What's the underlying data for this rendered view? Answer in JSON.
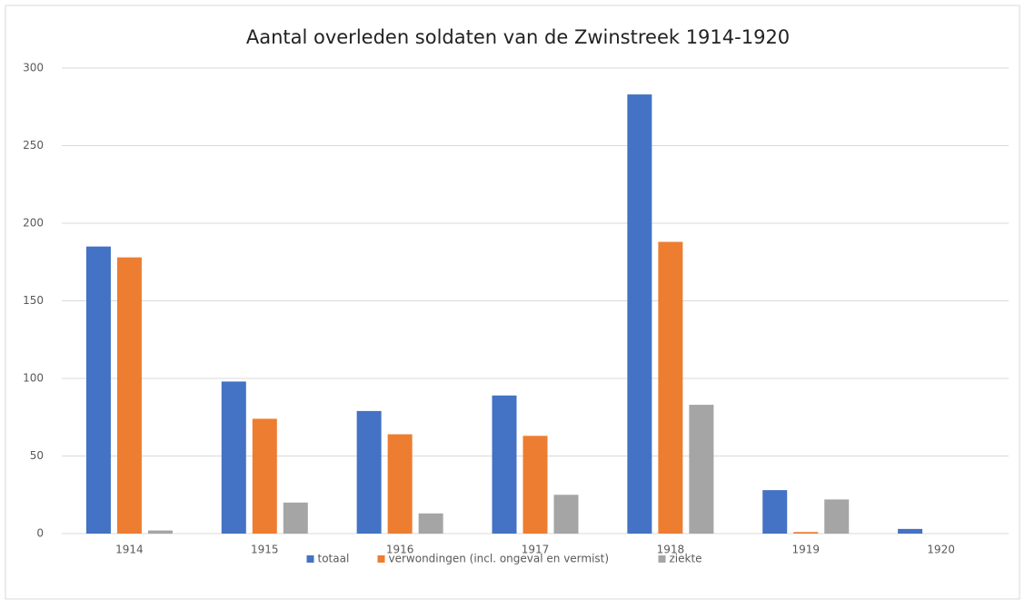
{
  "chart_data": {
    "type": "bar",
    "title": "Aantal overleden soldaten van de Zwinstreek 1914-1920",
    "categories": [
      "1914",
      "1915",
      "1916",
      "1917",
      "1918",
      "1919",
      "1920"
    ],
    "series": [
      {
        "name": "totaal",
        "color": "#4472c4",
        "values": [
          185,
          98,
          79,
          89,
          283,
          28,
          3
        ]
      },
      {
        "name": "verwondingen (incl. ongeval en vermist)",
        "color": "#ed7d31",
        "values": [
          178,
          74,
          64,
          63,
          188,
          1,
          0
        ]
      },
      {
        "name": "ziekte",
        "color": "#a5a5a5",
        "values": [
          2,
          20,
          13,
          25,
          83,
          22,
          0
        ]
      }
    ],
    "ylim": [
      0,
      300
    ],
    "yticks": [
      0,
      50,
      100,
      150,
      200,
      250,
      300
    ],
    "grid": true,
    "legend": "bottom"
  }
}
